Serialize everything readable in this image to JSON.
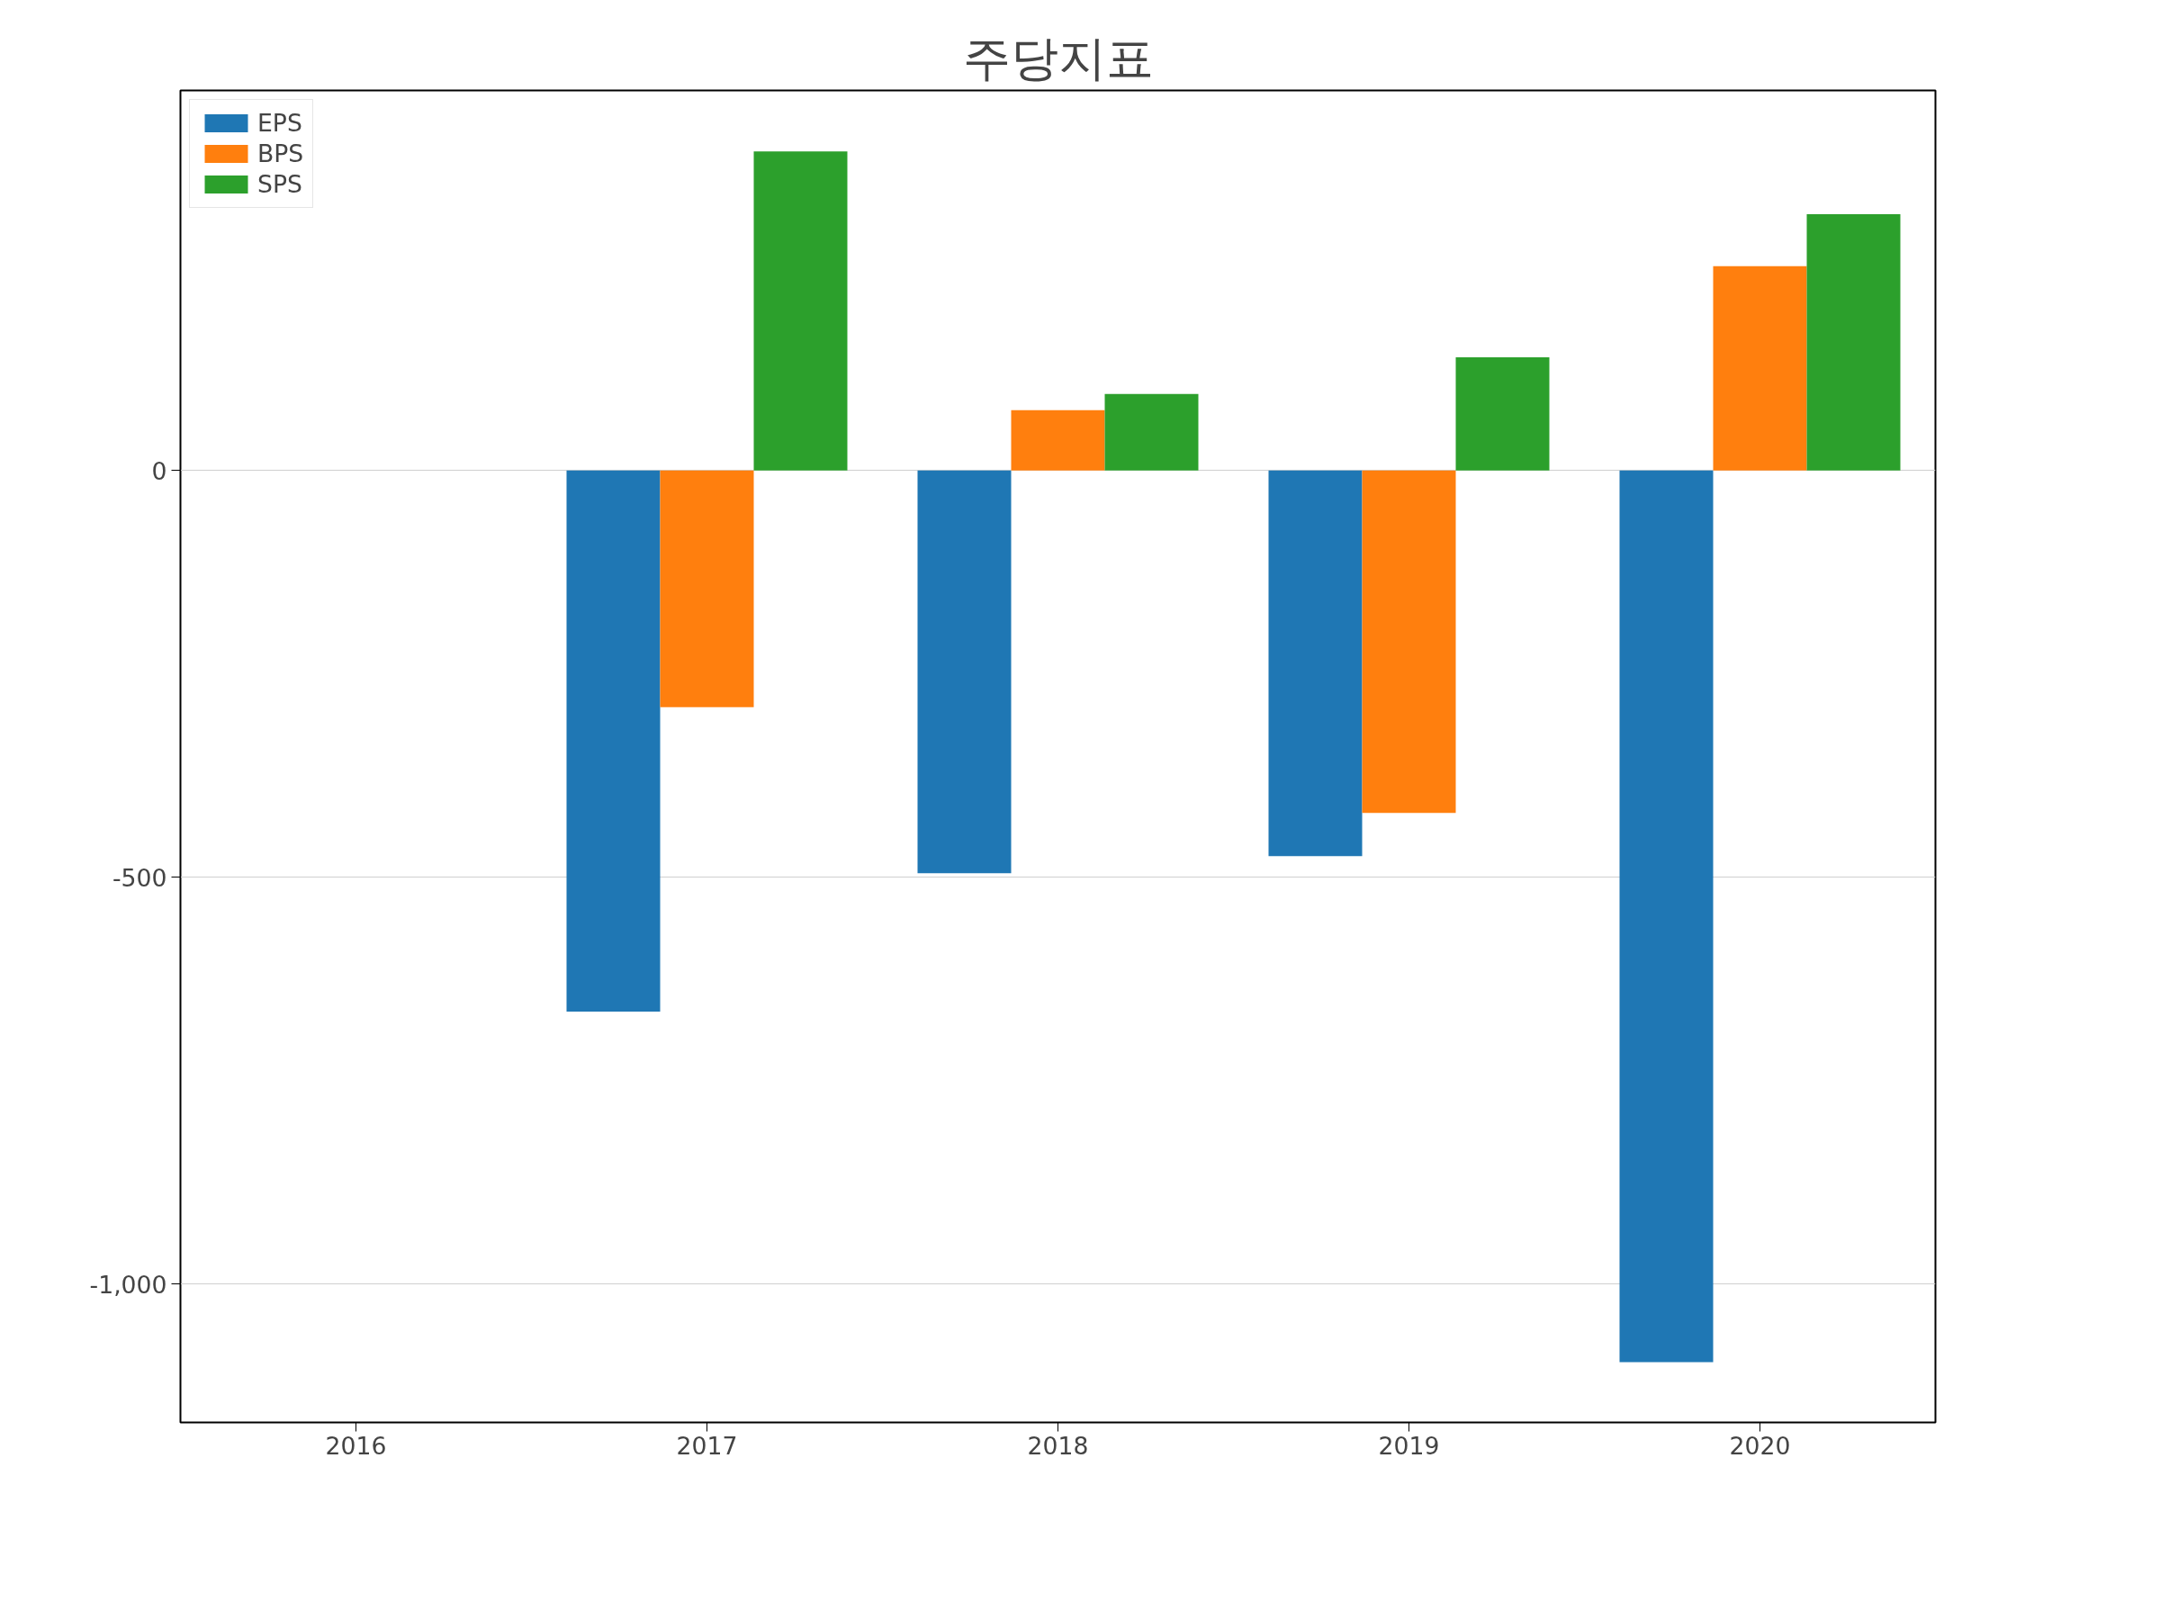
{
  "chart_data": {
    "type": "bar",
    "title": "주당지표",
    "categories": [
      "2016",
      "2017",
      "2018",
      "2019",
      "2020"
    ],
    "series": [
      {
        "name": "EPS",
        "color": "#1f77b4",
        "values": [
          null,
          -665,
          -495,
          -474,
          -1096
        ]
      },
      {
        "name": "BPS",
        "color": "#ff7f0e",
        "values": [
          null,
          -291,
          74,
          -421,
          251
        ]
      },
      {
        "name": "SPS",
        "color": "#2ca02c",
        "values": [
          null,
          392,
          94,
          139,
          315
        ]
      }
    ],
    "ylim": [
      -1170,
      467
    ],
    "yticks": [
      {
        "value": -1000,
        "label": "-1,000"
      },
      {
        "value": -500,
        "label": "-500"
      },
      0
    ],
    "grid": "y",
    "legend": "top left"
  }
}
